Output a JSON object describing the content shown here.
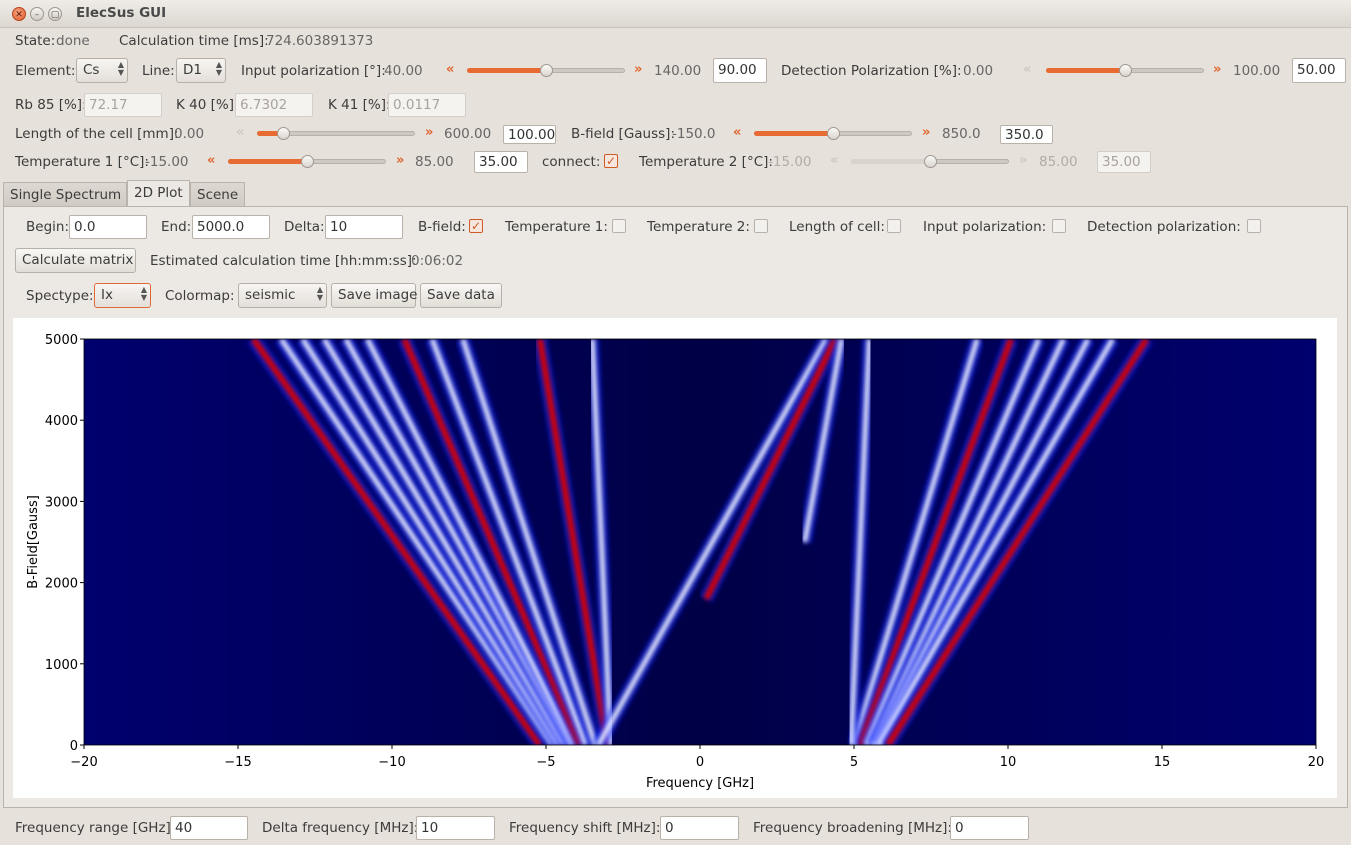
{
  "window": {
    "title": "ElecSus GUI"
  },
  "status": {
    "state_label": "State:",
    "state_value": "done",
    "calc_label": "Calculation time [ms]:",
    "calc_value": "724.603891373"
  },
  "row1": {
    "element_label": "Element:",
    "element_value": "Cs",
    "line_label": "Line:",
    "line_value": "D1",
    "input_pol_label": "Input polarization [°]:",
    "input_pol_min": "40.00",
    "input_pol_max": "140.00",
    "input_pol_value": "90.00",
    "input_pol_level": 0.5,
    "det_pol_label": "Detection Polarization [%]:",
    "det_pol_min": "0.00",
    "det_pol_max": "100.00",
    "det_pol_value": "50.00",
    "det_pol_level": 0.5
  },
  "row2": {
    "rb85_label": "Rb 85 [%]:",
    "rb85_value": "72.17",
    "k40_label": "K 40 [%]:",
    "k40_value": "6.7302",
    "k41_label": "K 41 [%]:",
    "k41_value": "0.0117"
  },
  "row3": {
    "length_label": "Length of the cell [mm]:",
    "length_min": "0.00",
    "length_max": "600.00",
    "length_value": "100.00",
    "length_level": 0.167,
    "bfield_label": "B-field [Gauss]:",
    "bfield_min": "-150.0",
    "bfield_max": "850.0",
    "bfield_value": "350.0",
    "bfield_level": 0.5
  },
  "row4": {
    "temp1_label": "Temperature 1 [°C]:",
    "temp1_min": "-15.00",
    "temp1_max": "85.00",
    "temp1_value": "35.00",
    "temp1_level": 0.5,
    "connect_label": "connect:",
    "connect_checked": true,
    "temp2_label": "Temperature 2 [°C]:",
    "temp2_min": "-15.00",
    "temp2_max": "85.00",
    "temp2_value": "35.00",
    "temp2_level": 0.5
  },
  "tabs": [
    "Single Spectrum",
    "2D Plot",
    "Scene"
  ],
  "plot_controls": {
    "begin_label": "Begin:",
    "begin_value": "0.0",
    "end_label": "End:",
    "end_value": "5000.0",
    "delta_label": "Delta:",
    "delta_value": "10",
    "bfield_label": "B-field:",
    "temp1_label": "Temperature 1:",
    "temp2_label": "Temperature 2:",
    "length_label": "Length of cell:",
    "input_pol_label": "Input polarization:",
    "det_pol_label": "Detection polarization:",
    "calc_button": "Calculate matrix",
    "est_label": "Estimated calculation time [hh:mm:ss]:",
    "est_value": "0:06:02",
    "spectype_label": "Spectype:",
    "spectype_value": "Ix",
    "colormap_label": "Colormap:",
    "colormap_value": "seismic",
    "save_image": "Save image",
    "save_data": "Save data"
  },
  "chart_data": {
    "type": "heatmap",
    "colormap": "seismic",
    "xlabel": "Frequency  [GHz]",
    "ylabel": "B-Field[Gauss]",
    "xlim": [
      -20,
      20
    ],
    "ylim": [
      0,
      5000
    ],
    "xticks": [
      "−20",
      "−15",
      "−10",
      "−5",
      "0",
      "5",
      "10",
      "15",
      "20"
    ],
    "yticks": [
      "0",
      "1000",
      "2000",
      "3000",
      "4000",
      "5000"
    ],
    "lines": [
      {
        "x": [
          -5.2,
          -14.5
        ],
        "y": [
          0,
          5000
        ],
        "color": "red"
      },
      {
        "x": [
          -4.8,
          -13.6
        ],
        "y": [
          0,
          5000
        ],
        "color": "white"
      },
      {
        "x": [
          -4.6,
          -12.9
        ],
        "y": [
          0,
          5000
        ],
        "color": "white"
      },
      {
        "x": [
          -4.4,
          -12.2
        ],
        "y": [
          0,
          5000
        ],
        "color": "white"
      },
      {
        "x": [
          -4.2,
          -11.5
        ],
        "y": [
          0,
          5000
        ],
        "color": "white"
      },
      {
        "x": [
          -4.1,
          -10.8
        ],
        "y": [
          0,
          5000
        ],
        "color": "white"
      },
      {
        "x": [
          -3.9,
          -9.6
        ],
        "y": [
          0,
          5000
        ],
        "color": "red"
      },
      {
        "x": [
          -3.7,
          -8.7
        ],
        "y": [
          0,
          5000
        ],
        "color": "white"
      },
      {
        "x": [
          -3.4,
          -7.7
        ],
        "y": [
          0,
          5000
        ],
        "color": "white"
      },
      {
        "x": [
          -3.0,
          -5.2
        ],
        "y": [
          0,
          5000
        ],
        "color": "red"
      },
      {
        "x": [
          -2.9,
          -3.5
        ],
        "y": [
          0,
          5000
        ],
        "color": "white"
      },
      {
        "x": [
          -3.3,
          4.1
        ],
        "y": [
          0,
          5000
        ],
        "color": "white"
      },
      {
        "x": [
          0.2,
          4.4
        ],
        "y": [
          1800,
          5000
        ],
        "color": "red"
      },
      {
        "x": [
          5.0,
          9.0
        ],
        "y": [
          0,
          5000
        ],
        "color": "white"
      },
      {
        "x": [
          5.2,
          10.1
        ],
        "y": [
          0,
          5000
        ],
        "color": "red"
      },
      {
        "x": [
          5.4,
          11.0
        ],
        "y": [
          0,
          5000
        ],
        "color": "white"
      },
      {
        "x": [
          5.6,
          11.8
        ],
        "y": [
          0,
          5000
        ],
        "color": "white"
      },
      {
        "x": [
          5.7,
          12.6
        ],
        "y": [
          0,
          5000
        ],
        "color": "white"
      },
      {
        "x": [
          5.8,
          13.4
        ],
        "y": [
          0,
          5000
        ],
        "color": "white"
      },
      {
        "x": [
          6.1,
          14.5
        ],
        "y": [
          0,
          5000
        ],
        "color": "red"
      },
      {
        "x": [
          4.9,
          5.5
        ],
        "y": [
          0,
          5000
        ],
        "color": "white"
      },
      {
        "x": [
          3.4,
          4.6
        ],
        "y": [
          2500,
          5000
        ],
        "color": "white"
      }
    ]
  },
  "bottom": {
    "freq_range_label": "Frequency range [GHz]:",
    "freq_range_value": "40",
    "delta_freq_label": "Delta frequency [MHz]:",
    "delta_freq_value": "10",
    "freq_shift_label": "Frequency shift [MHz]:",
    "freq_shift_value": "0",
    "freq_broad_label": "Frequency broadening [MHz]:",
    "freq_broad_value": "0"
  }
}
